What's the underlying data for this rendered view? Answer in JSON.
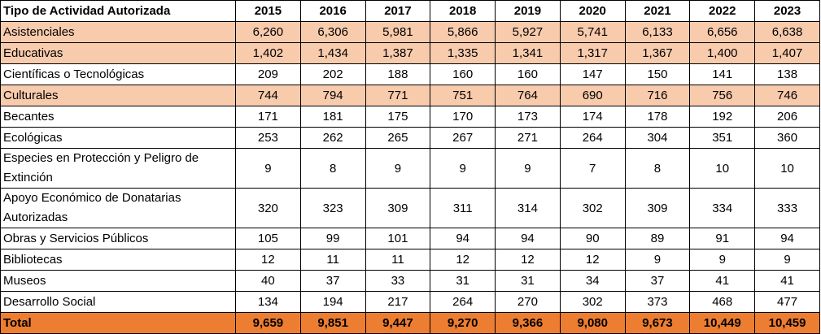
{
  "table": {
    "header": [
      "Tipo de Actividad Autorizada",
      "2015",
      "2016",
      "2017",
      "2018",
      "2019",
      "2020",
      "2021",
      "2022",
      "2023"
    ],
    "rows": [
      [
        "Asistenciales",
        "6,260",
        "6,306",
        "5,981",
        "5,866",
        "5,927",
        "5,741",
        "6,133",
        "6,656",
        "6,638"
      ],
      [
        "Educativas",
        "1,402",
        "1,434",
        "1,387",
        "1,335",
        "1,341",
        "1,317",
        "1,367",
        "1,400",
        "1,407"
      ],
      [
        "Científicas o Tecnológicas",
        "209",
        "202",
        "188",
        "160",
        "160",
        "147",
        "150",
        "141",
        "138"
      ],
      [
        "Culturales",
        "744",
        "794",
        "771",
        "751",
        "764",
        "690",
        "716",
        "756",
        "746"
      ],
      [
        "Becantes",
        "171",
        "181",
        "175",
        "170",
        "173",
        "174",
        "178",
        "192",
        "206"
      ],
      [
        "Ecológicas",
        "253",
        "262",
        "265",
        "267",
        "271",
        "264",
        "304",
        "351",
        "360"
      ],
      [
        "Especies en Protección y Peligro de Extinción",
        "9",
        "8",
        "9",
        "9",
        "9",
        "7",
        "8",
        "10",
        "10"
      ],
      [
        "Apoyo Económico de Donatarias Autorizadas",
        "320",
        "323",
        "309",
        "311",
        "314",
        "302",
        "309",
        "334",
        "333"
      ],
      [
        "Obras y Servicios Públicos",
        "105",
        "99",
        "101",
        "94",
        "94",
        "90",
        "89",
        "91",
        "94"
      ],
      [
        "Bibliotecas",
        "12",
        "11",
        "11",
        "12",
        "12",
        "12",
        "9",
        "9",
        "9"
      ],
      [
        "Museos",
        "40",
        "37",
        "33",
        "31",
        "31",
        "34",
        "37",
        "41",
        "41"
      ],
      [
        "Desarrollo Social",
        "134",
        "194",
        "217",
        "264",
        "270",
        "302",
        "373",
        "468",
        "477"
      ]
    ],
    "total": [
      "Total",
      "9,659",
      "9,851",
      "9,447",
      "9,270",
      "9,366",
      "9,080",
      "9,673",
      "10,449",
      "10,459"
    ]
  }
}
